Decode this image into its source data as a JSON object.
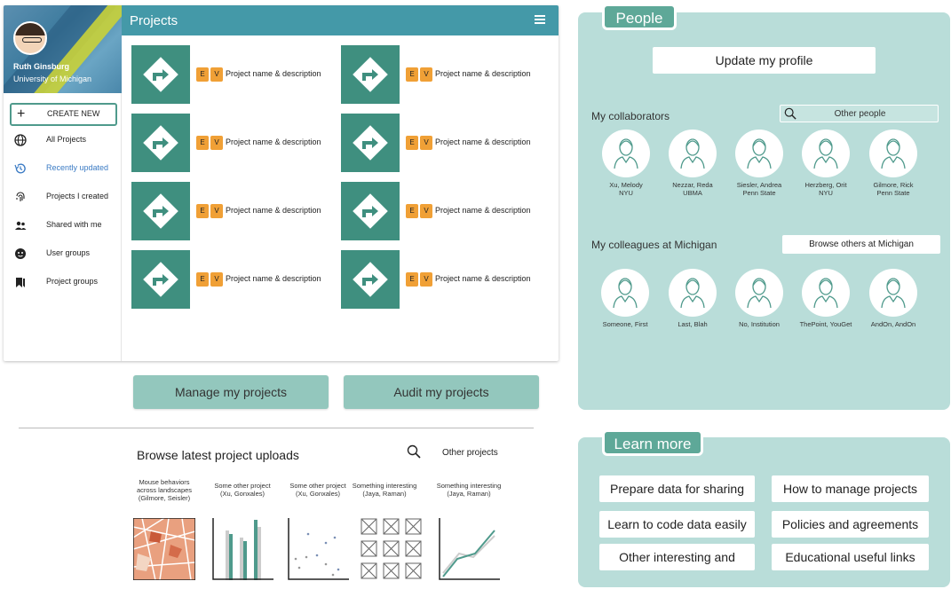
{
  "profile": {
    "name": "Ruth Ginsburg",
    "university": "University of Michigan"
  },
  "projects_panel": {
    "title": "Projects",
    "create_new": "CREATE NEW",
    "sidebar": [
      {
        "label": "All Projects",
        "icon": "globe-icon"
      },
      {
        "label": "Recently updated",
        "icon": "history-icon"
      },
      {
        "label": "Projects I created",
        "icon": "fingerprint-icon"
      },
      {
        "label": "Shared with me",
        "icon": "people-icon"
      },
      {
        "label": "User groups",
        "icon": "group-face-icon"
      },
      {
        "label": "Project groups",
        "icon": "bookmark-icon"
      }
    ],
    "active_sidebar_item": "Recently updated",
    "badge_e": "E",
    "badge_v": "V",
    "items": [
      "Project name & description",
      "Project name & description",
      "Project name & description",
      "Project name & description",
      "Project name & description",
      "Project name & description",
      "Project name & description",
      "Project name & description"
    ]
  },
  "actions": {
    "manage": "Manage my projects",
    "audit": "Audit my projects"
  },
  "browse": {
    "title": "Browse latest project uploads",
    "other_projects": "Other projects",
    "uploads": [
      {
        "caption": "Mouse behaviors across landscapes (Gilmore, Seisler)",
        "kind": "map"
      },
      {
        "caption": "Some other project (Xu, Gonxales)",
        "kind": "bar"
      },
      {
        "caption": "Some other project (Xu, Gonxales)",
        "kind": "scatter"
      },
      {
        "caption": "Something interesting (Jaya, Raman)",
        "kind": "grid"
      },
      {
        "caption": "Something interesting (Jaya, Raman)",
        "kind": "line"
      }
    ]
  },
  "people": {
    "title": "People",
    "update_profile": "Update my profile",
    "collaborators_title": "My collaborators",
    "other_people": "Other people",
    "collaborators": [
      {
        "name": "Xu, Melody",
        "org": "NYU"
      },
      {
        "name": "Nezzar, Reda",
        "org": "UBMA"
      },
      {
        "name": "Siesler, Andrea",
        "org": "Penn State"
      },
      {
        "name": "Herzberg, Orit",
        "org": "NYU"
      },
      {
        "name": "Gilmore, Rick",
        "org": "Penn State"
      }
    ],
    "colleagues_title": "My colleagues at Michigan",
    "browse_others": "Browse others at Michigan",
    "colleagues": [
      {
        "name": "Someone, First"
      },
      {
        "name": "Last, Blah"
      },
      {
        "name": "No, Institution"
      },
      {
        "name": "ThePoint, YouGet"
      },
      {
        "name": "AndOn, AndOn"
      }
    ]
  },
  "learn_more": {
    "title": "Learn more",
    "links": [
      "Prepare data for sharing",
      "How to manage projects",
      "Learn to code data easily",
      "Policies and agreements",
      "Other interesting and",
      "Educational useful links"
    ]
  },
  "colors": {
    "teal_dark": "#3f8f7f",
    "topbar": "#4499a8",
    "panel_bg": "#b9ddd9",
    "badge": "#f0a036",
    "button": "#93c7bd"
  }
}
